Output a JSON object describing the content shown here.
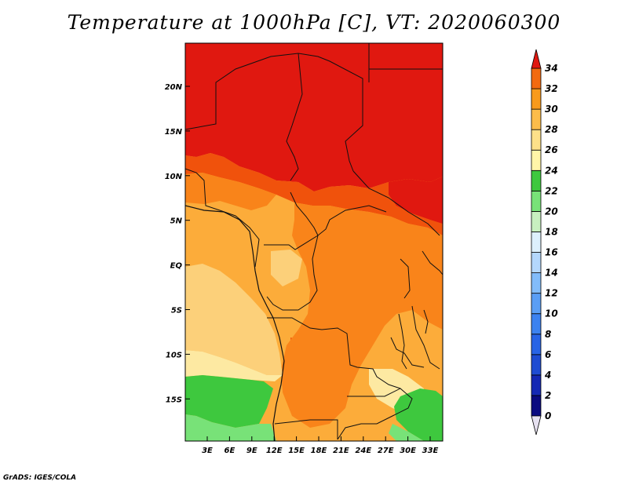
{
  "title": "Temperature at 1000hPa [C], VT: 2020060300",
  "credit": "GrADS: IGES/COLA",
  "map": {
    "lat_ticks": [
      "20N",
      "15N",
      "10N",
      "5N",
      "EQ",
      "5S",
      "10S",
      "15S"
    ],
    "lon_ticks": [
      "3E",
      "6E",
      "9E",
      "12E",
      "15E",
      "18E",
      "21E",
      "24E",
      "27E",
      "30E",
      "33E"
    ]
  },
  "colorbar": {
    "levels": [
      "0",
      "2",
      "4",
      "6",
      "8",
      "10",
      "12",
      "14",
      "16",
      "18",
      "20",
      "22",
      "24",
      "26",
      "28",
      "30",
      "32",
      "34"
    ],
    "colors": [
      "#0a0a80",
      "#1428b4",
      "#1e4cd2",
      "#2864e6",
      "#3c82f0",
      "#5a9ef5",
      "#82bcfa",
      "#b4d7fc",
      "#ddf0fd",
      "#c8f0c0",
      "#78e278",
      "#3ec83e",
      "#fff5a8",
      "#fde089",
      "#fcbc4a",
      "#f99a1c",
      "#f26a10",
      "#e32a0a"
    ],
    "under_color": "#e6e1f0",
    "over_color": "#e01810"
  },
  "regions": {
    "hot_north": "#e01810",
    "t30_32": "#f0520c",
    "t28_30": "#f9841a",
    "t26_28": "#fcac3a",
    "t24_26": "#fcd07a",
    "t22_24": "#fde9a2",
    "t18_20": "#78e278",
    "t20_22": "#3ec83e"
  }
}
